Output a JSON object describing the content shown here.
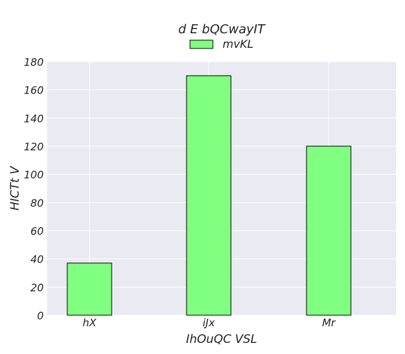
{
  "chart_data": {
    "type": "bar",
    "title": "d E bQCwayIT",
    "xlabel": "IhOuQC VSL",
    "ylabel": "HICTt V",
    "categories": [
      "hX",
      "iJx",
      "Mr"
    ],
    "series": [
      {
        "name": "mvKL",
        "values": [
          37,
          170,
          120
        ]
      }
    ],
    "ylim": [
      0,
      180
    ],
    "yticks": [
      0,
      20,
      40,
      60,
      80,
      100,
      120,
      140,
      160,
      180
    ],
    "grid": true,
    "legend": "top-center",
    "colors": {
      "bar": "#80ff80",
      "bar_edge": "#000000",
      "plot_bg": "#eaeaf2",
      "grid": "#ffffff"
    }
  }
}
